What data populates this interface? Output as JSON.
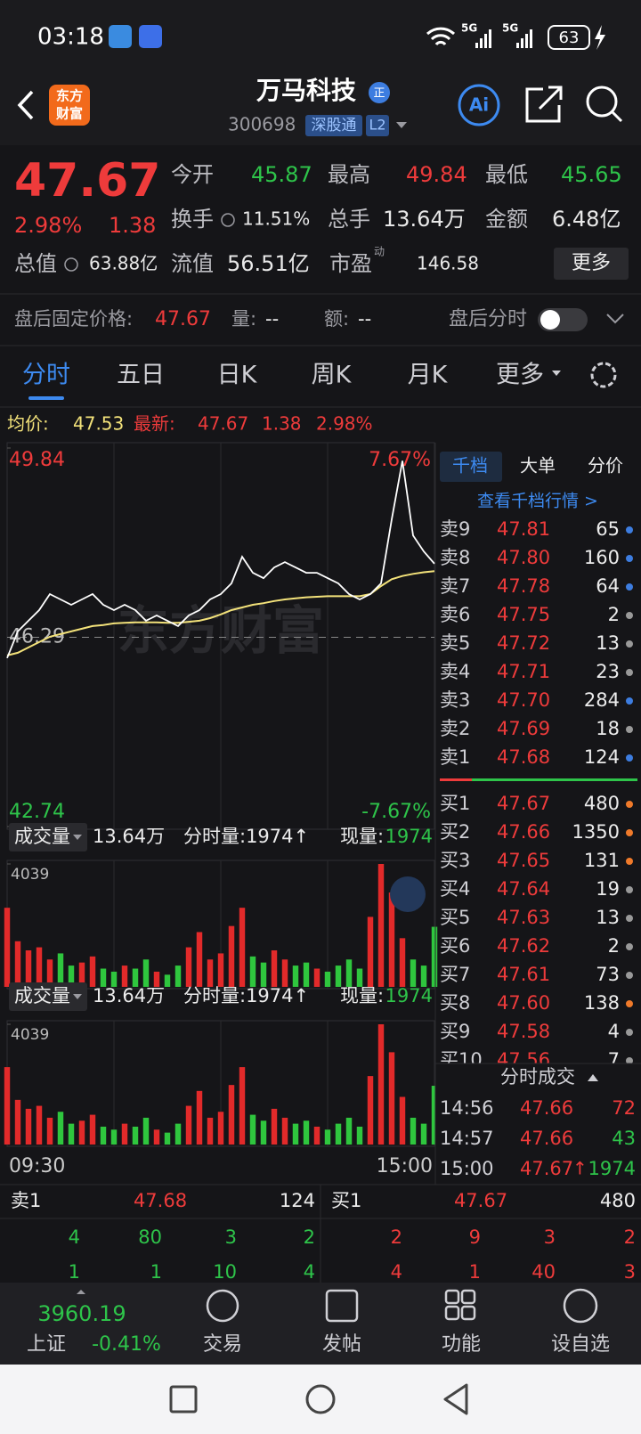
{
  "status_bar": {
    "time": "03:18",
    "network_1": "5G",
    "network_2": "5G",
    "battery": "63"
  },
  "header": {
    "logo_line1": "东方",
    "logo_line2": "财富",
    "name": "万马科技",
    "badge": "正",
    "code": "300698",
    "market_tag": "深股通",
    "level_tag": "L2",
    "ai_button": "Ai"
  },
  "quote": {
    "price": "47.67",
    "change_pct": "2.98%",
    "change": "1.38",
    "fields": [
      {
        "label": "今开",
        "value": "45.87",
        "color": "#2ec44a"
      },
      {
        "label": "最高",
        "value": "49.84",
        "color": "#ee3b3b"
      },
      {
        "label": "最低",
        "value": "45.65",
        "color": "#2ec44a"
      },
      {
        "label": "换手",
        "value": "11.51%",
        "color": "#e8e8e8"
      },
      {
        "label": "总手",
        "value": "13.64万",
        "color": "#e8e8e8"
      },
      {
        "label": "金额",
        "value": "6.48亿",
        "color": "#e8e8e8"
      },
      {
        "label": "总值",
        "value": "63.88亿",
        "color": "#e8e8e8"
      },
      {
        "label": "流值",
        "value": "56.51亿",
        "color": "#e8e8e8"
      },
      {
        "label": "市盈",
        "value": "146.58",
        "color": "#e8e8e8"
      }
    ],
    "pe_note": "动",
    "more_button": "更多"
  },
  "after_hours": {
    "price_label": "盘后固定价格:",
    "price": "47.67",
    "volume_label": "量:",
    "volume": "--",
    "amount_label": "额:",
    "amount": "--",
    "toggle_label": "盘后分时"
  },
  "tabs": [
    "分时",
    "五日",
    "日K",
    "周K",
    "月K",
    "更多"
  ],
  "summary": {
    "avg_label": "均价:",
    "avg": "47.53",
    "last_label": "最新:",
    "last": "47.67",
    "change": "1.38",
    "change_pct": "2.98%"
  },
  "price_chart": {
    "ylim": [
      42.74,
      49.84
    ],
    "yticks": [
      49.84,
      46.29,
      42.74
    ],
    "pct_labels": [
      "7.67%",
      "-7.67%"
    ],
    "watermark": "东方财富",
    "price_color": "#ffffff",
    "avg_color": "#f3e27a",
    "price": [
      45.9,
      46.4,
      46.6,
      46.8,
      47.1,
      47.0,
      46.9,
      47.0,
      47.1,
      46.9,
      46.8,
      46.9,
      46.8,
      46.6,
      46.7,
      46.6,
      46.5,
      46.7,
      46.8,
      47.0,
      47.1,
      47.3,
      47.8,
      47.5,
      47.4,
      47.6,
      47.7,
      47.6,
      47.5,
      47.5,
      47.4,
      47.3,
      47.1,
      47.0,
      47.1,
      47.3,
      48.5,
      49.6,
      48.2,
      47.9,
      47.67
    ],
    "avg": [
      45.95,
      46.0,
      46.1,
      46.2,
      46.3,
      46.35,
      46.4,
      46.45,
      46.5,
      46.52,
      46.55,
      46.56,
      46.57,
      46.57,
      46.57,
      46.56,
      46.56,
      46.58,
      46.6,
      46.65,
      46.72,
      46.8,
      46.85,
      46.9,
      46.93,
      46.97,
      47.0,
      47.02,
      47.04,
      47.05,
      47.06,
      47.06,
      47.06,
      47.06,
      47.1,
      47.25,
      47.38,
      47.44,
      47.48,
      47.51,
      47.53
    ]
  },
  "volume": {
    "ylim": [
      0,
      4039
    ],
    "yticks": [
      4039
    ],
    "up_color": "#e22a2a",
    "down_color": "#2fc63e",
    "values": [
      2600,
      1500,
      1200,
      1300,
      900,
      1100,
      700,
      800,
      1000,
      600,
      500,
      700,
      600,
      900,
      500,
      400,
      700,
      1300,
      1800,
      900,
      1100,
      2000,
      2600,
      1000,
      800,
      1200,
      900,
      700,
      800,
      600,
      500,
      700,
      900,
      600,
      2300,
      4039,
      3100,
      1600,
      900,
      700,
      1974
    ]
  },
  "volume_panels": [
    {
      "selector": "成交量",
      "total": "13.64万",
      "tick_volume": "分时量:1974↑",
      "current_label": "现量:",
      "current": "1974"
    },
    {
      "selector": "成交量",
      "total": "13.64万",
      "tick_volume": "分时量:1974↑",
      "current_label": "现量:",
      "current": "1974"
    }
  ],
  "time_axis": [
    "09:30",
    "15:00"
  ],
  "order_book": {
    "tabs": [
      "千档",
      "大单",
      "分价"
    ],
    "link": "查看千档行情 >",
    "asks": [
      {
        "label": "卖9",
        "price": "47.81",
        "volume": "65",
        "dot": "#3d7de0"
      },
      {
        "label": "卖8",
        "price": "47.80",
        "volume": "160",
        "dot": "#3d7de0"
      },
      {
        "label": "卖7",
        "price": "47.78",
        "volume": "64",
        "dot": "#3d7de0"
      },
      {
        "label": "卖6",
        "price": "47.75",
        "volume": "2",
        "dot": "#999999"
      },
      {
        "label": "卖5",
        "price": "47.72",
        "volume": "13",
        "dot": "#999999"
      },
      {
        "label": "卖4",
        "price": "47.71",
        "volume": "23",
        "dot": "#999999"
      },
      {
        "label": "卖3",
        "price": "47.70",
        "volume": "284",
        "dot": "#3d7de0"
      },
      {
        "label": "卖2",
        "price": "47.69",
        "volume": "18",
        "dot": "#999999"
      },
      {
        "label": "卖1",
        "price": "47.68",
        "volume": "124",
        "dot": "#3d7de0"
      }
    ],
    "bids": [
      {
        "label": "买1",
        "price": "47.67",
        "volume": "480",
        "dot": "#f07a2a"
      },
      {
        "label": "买2",
        "price": "47.66",
        "volume": "1350",
        "dot": "#f07a2a"
      },
      {
        "label": "买3",
        "price": "47.65",
        "volume": "131",
        "dot": "#f07a2a"
      },
      {
        "label": "买4",
        "price": "47.64",
        "volume": "19",
        "dot": "#999999"
      },
      {
        "label": "买5",
        "price": "47.63",
        "volume": "13",
        "dot": "#999999"
      },
      {
        "label": "买6",
        "price": "47.62",
        "volume": "2",
        "dot": "#999999"
      },
      {
        "label": "买7",
        "price": "47.61",
        "volume": "73",
        "dot": "#999999"
      },
      {
        "label": "买8",
        "price": "47.60",
        "volume": "138",
        "dot": "#f07a2a"
      },
      {
        "label": "买9",
        "price": "47.58",
        "volume": "4",
        "dot": "#999999"
      },
      {
        "label": "买10",
        "price": "47.56",
        "volume": "7",
        "dot": "#999999"
      }
    ]
  },
  "trades": {
    "title": "分时成交",
    "rows": [
      {
        "time": "14:56",
        "price": "47.66",
        "volume": "72",
        "color": "#ee3b3b"
      },
      {
        "time": "14:57",
        "price": "47.66",
        "volume": "43",
        "color": "#2ec44a"
      },
      {
        "time": "15:00",
        "price": "47.67",
        "direction": "↑",
        "volume": "1974",
        "color": "#2ec44a"
      }
    ]
  },
  "level1": {
    "ask_label": "卖1",
    "ask_price": "47.68",
    "ask_volume": "124",
    "bid_label": "买1",
    "bid_price": "47.67",
    "bid_volume": "480",
    "ask_rows": [
      [
        "4",
        "80",
        "3",
        "2"
      ],
      [
        "1",
        "1",
        "10",
        "4"
      ]
    ],
    "bid_rows": [
      [
        "2",
        "9",
        "3",
        "2"
      ],
      [
        "4",
        "1",
        "40",
        "3"
      ]
    ]
  },
  "bottom_nav": {
    "index_value": "3960.19",
    "index_name": "上证",
    "index_change": "-0.41%",
    "items": [
      "交易",
      "发帖",
      "功能",
      "设自选"
    ]
  }
}
